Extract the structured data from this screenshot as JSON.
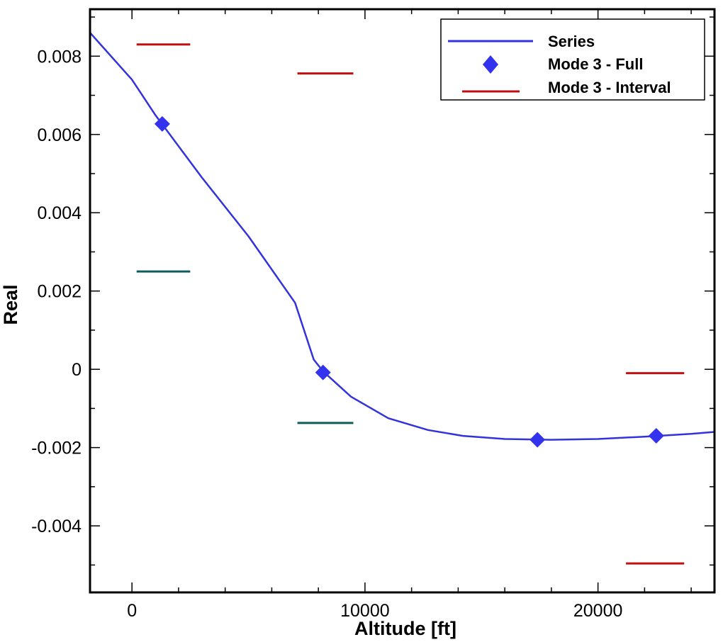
{
  "chart_data": {
    "type": "line",
    "xlabel": "Altitude [ft]",
    "ylabel": "Real",
    "xlim": [
      -1800,
      25000
    ],
    "ylim": [
      -0.0057,
      0.0092
    ],
    "x_ticks": [
      0,
      10000,
      20000
    ],
    "x_tick_labels": [
      "0",
      "10000",
      "20000"
    ],
    "y_ticks": [
      -0.004,
      -0.002,
      0,
      0.002,
      0.004,
      0.006,
      0.008
    ],
    "y_tick_labels": [
      "-0.004",
      "-0.002",
      "0",
      "0.002",
      "0.004",
      "0.006",
      "0.008"
    ],
    "grid": false,
    "legend_position": "top-right",
    "series": [
      {
        "name": "Series",
        "style": "line",
        "color": "#3333dd",
        "x": [
          -1800,
          0,
          1000,
          3000,
          5000,
          7000,
          7800,
          8200,
          9400,
          11000,
          12700,
          14200,
          16000,
          18000,
          20000,
          22000,
          24000,
          25000
        ],
        "y": [
          0.0086,
          0.0074,
          0.0065,
          0.0049,
          0.0034,
          0.0017,
          0.00025,
          -5e-05,
          -0.0007,
          -0.00125,
          -0.00155,
          -0.0017,
          -0.00178,
          -0.0018,
          -0.00178,
          -0.00172,
          -0.00165,
          -0.0016
        ]
      },
      {
        "name": "Mode 3 - Full",
        "style": "marker",
        "marker": "diamond",
        "color": "#3333ee",
        "x": [
          1300,
          8200,
          17400,
          22500
        ],
        "y": [
          0.00627,
          -8e-05,
          -0.0018,
          -0.0017
        ]
      },
      {
        "name": "Mode 3 - Interval",
        "style": "segment",
        "color": "#c01010",
        "segments": [
          {
            "x1": 200,
            "x2": 2500,
            "y": 0.0083
          },
          {
            "x1": 7100,
            "x2": 9500,
            "y": 0.00756
          },
          {
            "x1": 21200,
            "x2": 23700,
            "y": -0.0001
          },
          {
            "x1": 21200,
            "x2": 23700,
            "y": -0.00496
          }
        ]
      },
      {
        "style": "segment",
        "color": "#0e5e5e",
        "segments": [
          {
            "x1": 200,
            "x2": 2500,
            "y": 0.0025
          },
          {
            "x1": 7100,
            "x2": 9500,
            "y": -0.00137
          }
        ]
      }
    ]
  }
}
